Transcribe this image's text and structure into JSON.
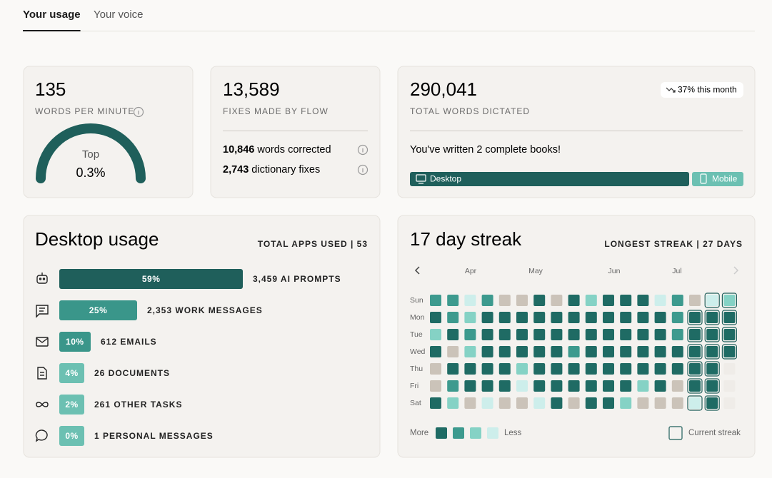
{
  "tabs": [
    {
      "label": "Your usage",
      "active": true
    },
    {
      "label": "Your voice",
      "active": false
    }
  ],
  "speed_card": {
    "value": "135",
    "label": "WORDS PER MINUTE",
    "gauge_caption": "Top",
    "gauge_value": "0.3%"
  },
  "fixes_card": {
    "value": "13,589",
    "label": "FIXES MADE BY FLOW",
    "details": [
      {
        "count": "10,846",
        "text": "words corrected"
      },
      {
        "count": "2,743",
        "text": "dictionary fixes"
      }
    ]
  },
  "words_card": {
    "value": "290,041",
    "label": "TOTAL WORDS DICTATED",
    "trend": "37% this month",
    "message": "You've written 2 complete books!",
    "devices": [
      "Desktop",
      "Mobile"
    ]
  },
  "desktop_usage": {
    "title": "Desktop usage",
    "total": "TOTAL APPS USED | 53",
    "rows": [
      {
        "percent": 59,
        "percent_label": "59%",
        "label": "3,459 AI PROMPTS",
        "color": "#1f5f5b"
      },
      {
        "percent": 25,
        "percent_label": "25%",
        "label": "2,353 WORK MESSAGES",
        "color": "#3a968a"
      },
      {
        "percent": 10,
        "percent_label": "10%",
        "label": "612 EMAILS",
        "color": "#3a968a"
      },
      {
        "percent": 4,
        "percent_label": "4%",
        "label": "26 DOCUMENTS",
        "color": "#6cc0b2"
      },
      {
        "percent": 2,
        "percent_label": "2%",
        "label": "261 OTHER TASKS",
        "color": "#6cc0b2"
      },
      {
        "percent": 0,
        "percent_label": "0%",
        "label": "1 PERSONAL MESSAGES",
        "color": "#6cc0b2"
      }
    ]
  },
  "streak": {
    "title": "17 day streak",
    "longest": "LONGEST STREAK | 27 DAYS",
    "months": [
      "Apr",
      "May",
      "Jun",
      "Jul"
    ],
    "days": [
      "Sun",
      "Mon",
      "Tue",
      "Wed",
      "Thu",
      "Fri",
      "Sat"
    ],
    "level_colors": [
      "#cbc3b9",
      "#cdeeeb",
      "#85d2c5",
      "#3d9a8e",
      "#1f6b64"
    ],
    "levels": [
      [
        3,
        3,
        1,
        3,
        0,
        0,
        4,
        0,
        4,
        2,
        4,
        4,
        4,
        1,
        3,
        0,
        1,
        2
      ],
      [
        4,
        3,
        2,
        4,
        4,
        4,
        4,
        4,
        4,
        4,
        4,
        4,
        4,
        4,
        3,
        4,
        4,
        4
      ],
      [
        2,
        4,
        3,
        4,
        4,
        4,
        4,
        4,
        4,
        4,
        4,
        4,
        4,
        4,
        3,
        4,
        4,
        4
      ],
      [
        4,
        0,
        2,
        4,
        4,
        4,
        4,
        4,
        3,
        4,
        4,
        4,
        4,
        4,
        4,
        4,
        4,
        4
      ],
      [
        0,
        4,
        4,
        4,
        4,
        2,
        4,
        4,
        4,
        4,
        4,
        4,
        4,
        4,
        4,
        4,
        4,
        null
      ],
      [
        0,
        3,
        4,
        4,
        4,
        1,
        4,
        4,
        4,
        4,
        4,
        4,
        2,
        4,
        0,
        4,
        4,
        null
      ],
      [
        4,
        2,
        0,
        1,
        0,
        0,
        1,
        4,
        0,
        4,
        4,
        2,
        0,
        0,
        0,
        1,
        4,
        null
      ]
    ],
    "legend": {
      "more": "More",
      "less": "Less",
      "current": "Current streak"
    }
  }
}
